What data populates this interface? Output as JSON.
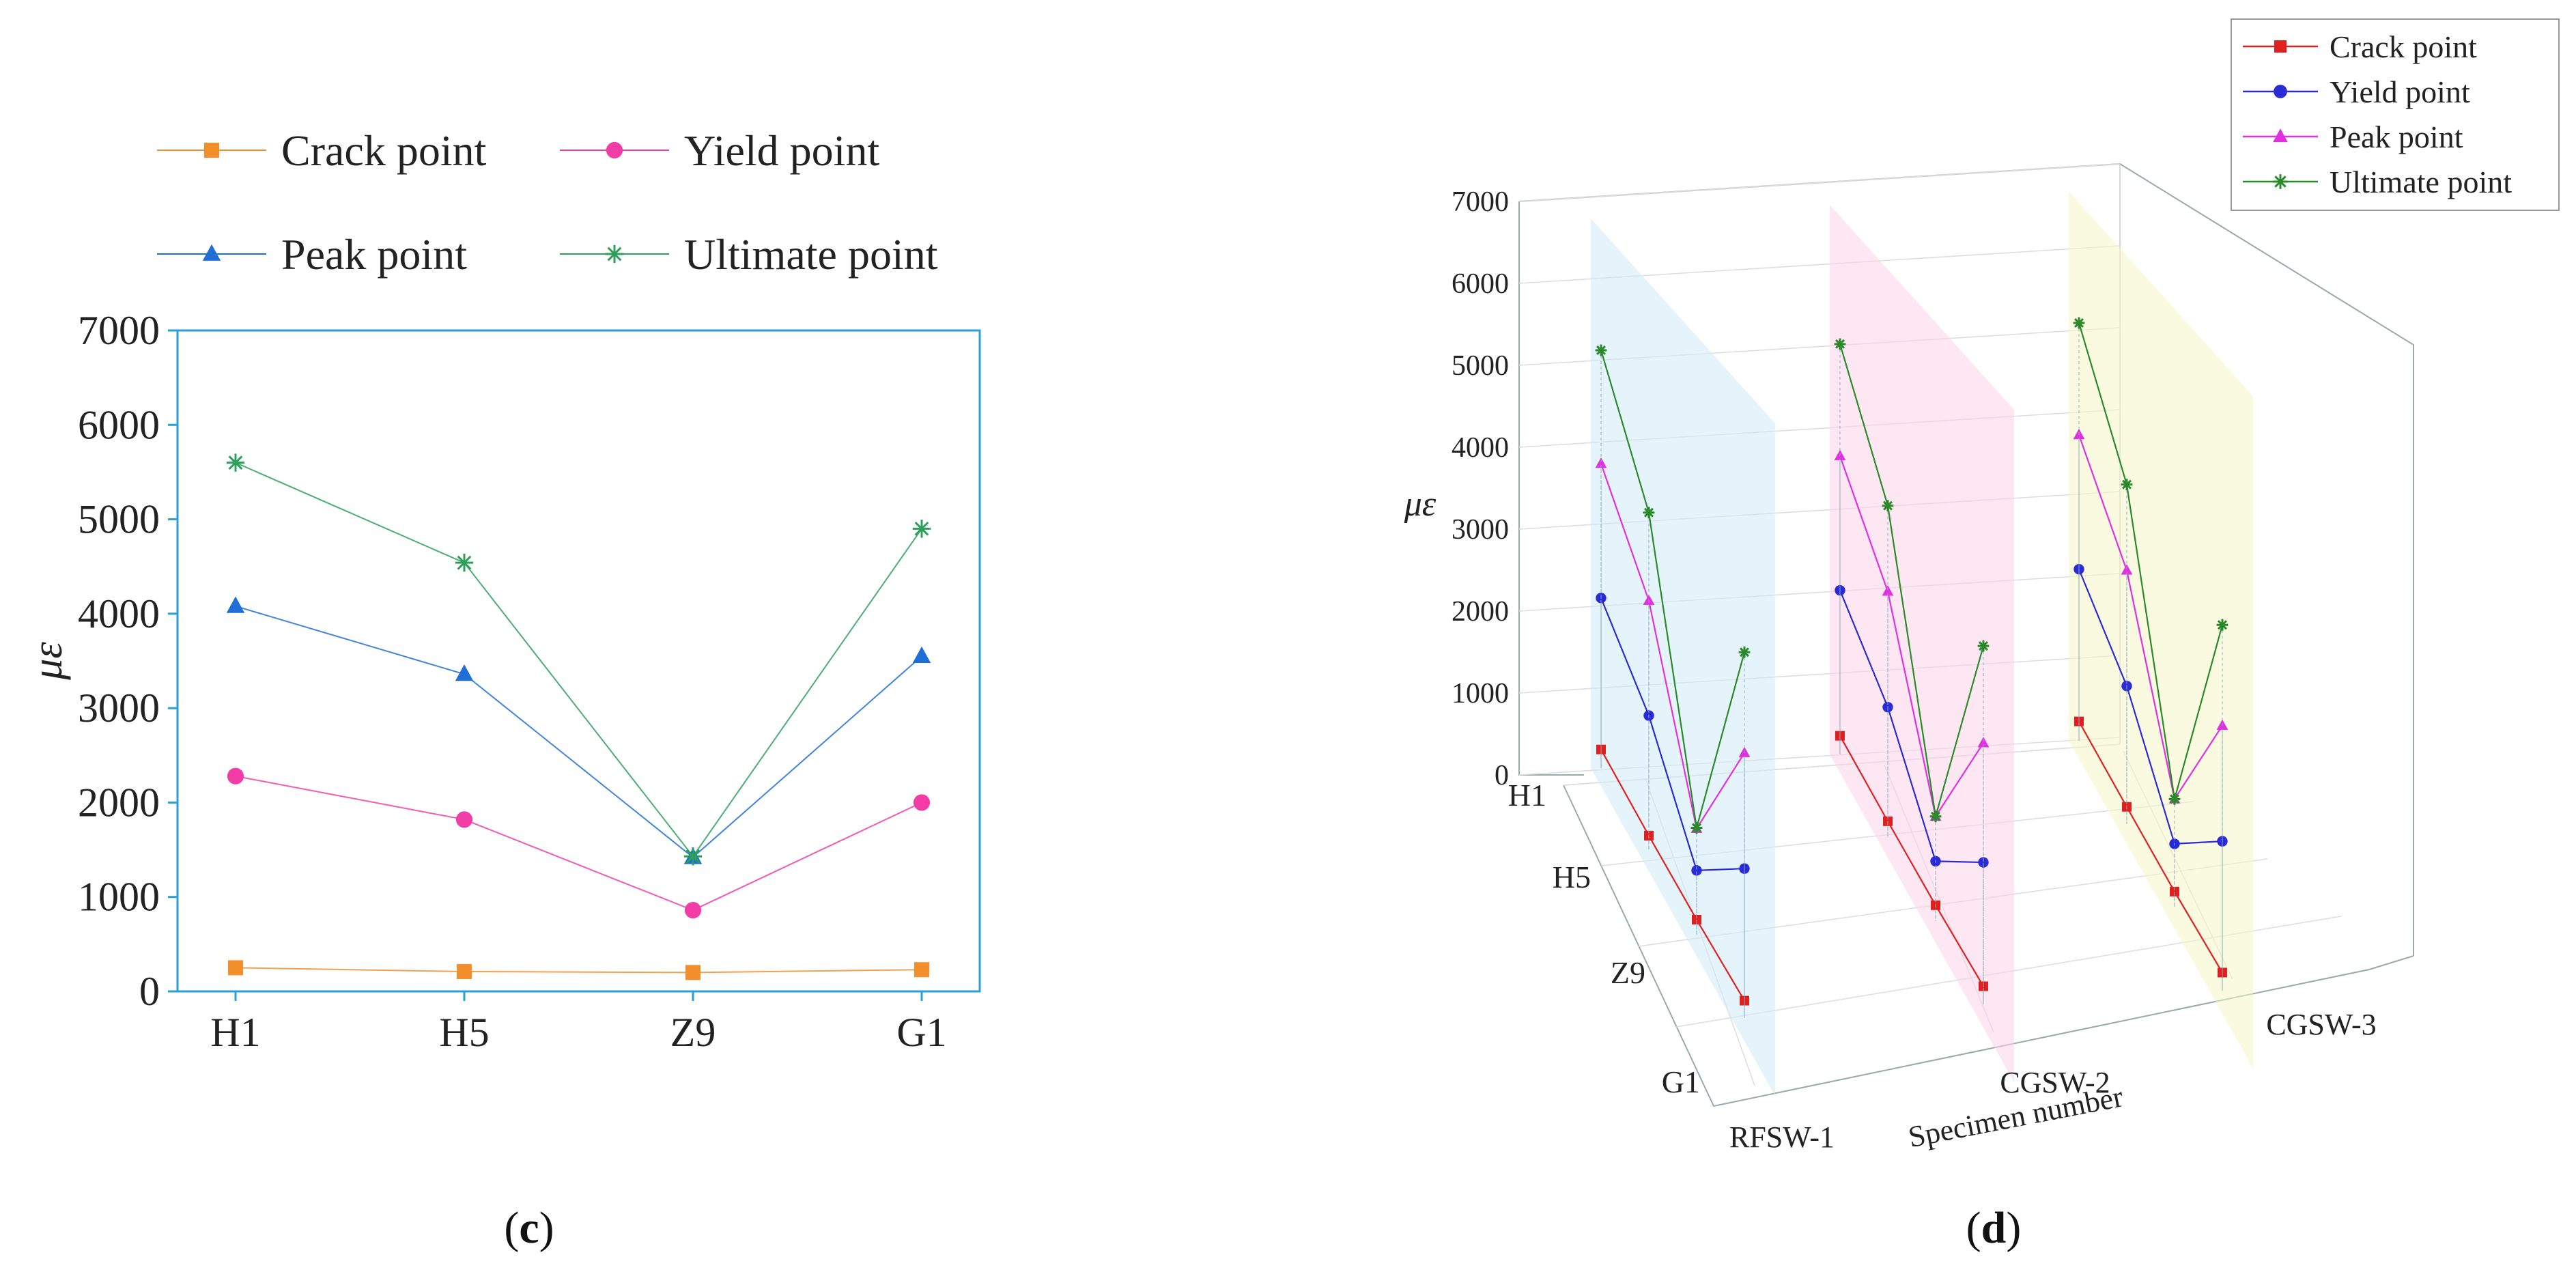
{
  "panel_c": {
    "label_prefix": "(",
    "label_letter": "c",
    "label_suffix": ")"
  },
  "panel_d": {
    "label_prefix": "(",
    "label_letter": "d",
    "label_suffix": ")"
  },
  "chart_data": [
    {
      "type": "line",
      "ylabel": "με",
      "ylim": [
        0,
        7000
      ],
      "yticks": [
        0,
        1000,
        2000,
        3000,
        4000,
        5000,
        6000,
        7000
      ],
      "categories": [
        "H1",
        "H5",
        "Z9",
        "G1"
      ],
      "legend": "top",
      "series": [
        {
          "name": "Crack point",
          "color": "#f28e2b",
          "marker": "square",
          "values": [
            250,
            210,
            200,
            230
          ]
        },
        {
          "name": "Yield point",
          "color": "#f23ca6",
          "marker": "circle",
          "values": [
            2280,
            1820,
            860,
            2000
          ]
        },
        {
          "name": "Peak point",
          "color": "#1f6fd6",
          "marker": "triangle",
          "values": [
            4080,
            3360,
            1420,
            3550
          ]
        },
        {
          "name": "Ultimate point",
          "color": "#2ca05a",
          "marker": "star",
          "values": [
            5600,
            4540,
            1430,
            4900
          ]
        }
      ]
    },
    {
      "type": "line-3d",
      "zlabel": "με",
      "xlabel": "Specimen number",
      "zlim": [
        0,
        7000
      ],
      "zticks": [
        0,
        1000,
        2000,
        3000,
        4000,
        5000,
        6000,
        7000
      ],
      "specimens": [
        "RFSW-1",
        "CGSW-2",
        "CGSW-3"
      ],
      "positions": [
        "H1",
        "H5",
        "Z9",
        "G1"
      ],
      "legend": "top-right",
      "series": [
        {
          "name": "Crack point",
          "color": "#e02020",
          "marker": "square",
          "values": {
            "RFSW-1": [
              250,
              210,
              200,
              230
            ],
            "CGSW-2": [
              250,
              220,
              210,
              240
            ],
            "CGSW-3": [
              260,
              230,
              210,
              240
            ]
          }
        },
        {
          "name": "Yield point",
          "color": "#2a2ad6",
          "marker": "circle",
          "values": {
            "RFSW-1": [
              2280,
              1820,
              860,
              2000
            ],
            "CGSW-2": [
              2200,
              1750,
              800,
              1900
            ],
            "CGSW-3": [
              2300,
              1850,
              850,
              2000
            ]
          }
        },
        {
          "name": "Peak point",
          "color": "#e030e0",
          "marker": "triangle",
          "values": {
            "RFSW-1": [
              4080,
              3360,
              1420,
              3550
            ],
            "CGSW-2": [
              4000,
              3300,
              1400,
              3500
            ],
            "CGSW-3": [
              4100,
              3400,
              1450,
              3550
            ]
          }
        },
        {
          "name": "Ultimate point",
          "color": "#2a8a2a",
          "marker": "star",
          "values": {
            "RFSW-1": [
              5600,
              4540,
              1430,
              4900
            ],
            "CGSW-2": [
              5500,
              4450,
              1400,
              4800
            ],
            "CGSW-3": [
              5600,
              4550,
              1450,
              4900
            ]
          }
        }
      ]
    }
  ]
}
